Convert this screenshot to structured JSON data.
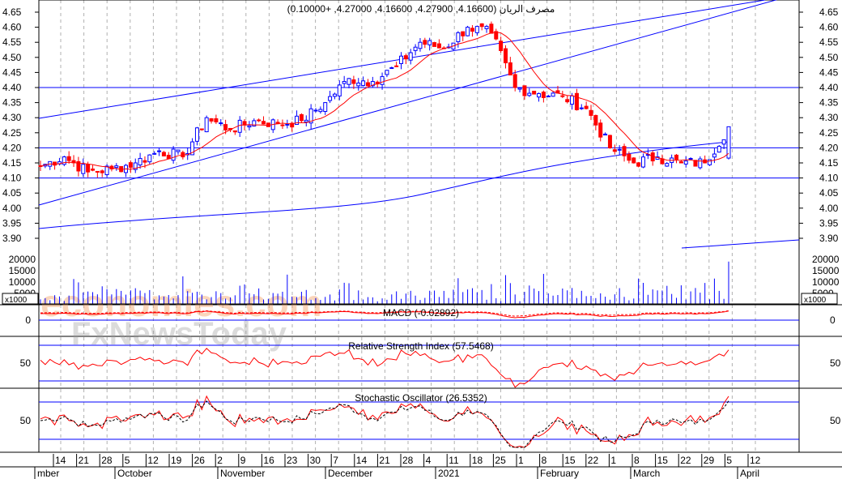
{
  "header": {
    "title": "مصرف الريان (4.16600, 4.27900, 4.16600, 4.27000, +0.10000)"
  },
  "watermarks": {
    "brand1": "economies.com",
    "brand2": "FxNewsToday"
  },
  "colors": {
    "up": "#0000ff",
    "down": "#ff0000",
    "ma": "#ff0000",
    "line": "#0000ff",
    "grid": "#b0b0b0"
  },
  "chart_data": [
    {
      "type": "candlestick",
      "name": "price",
      "yticks": [
        "4.65",
        "4.60",
        "4.55",
        "4.50",
        "4.45",
        "4.40",
        "4.35",
        "4.30",
        "4.25",
        "4.20",
        "4.15",
        "4.10",
        "4.05",
        "4.00",
        "3.95",
        "3.90"
      ],
      "ylim": [
        3.875,
        4.675
      ],
      "horizontal_levels": [
        4.4,
        4.2,
        4.1
      ],
      "weekly_closes": [
        4.14,
        4.17,
        4.12,
        4.13,
        4.15,
        4.19,
        4.17,
        4.3,
        4.26,
        4.29,
        4.28,
        4.29,
        4.35,
        4.43,
        4.42,
        4.47,
        4.55,
        4.53,
        4.6,
        4.58,
        4.4,
        4.38,
        4.37,
        4.33,
        4.2,
        4.15,
        4.17,
        4.15,
        4.15,
        4.27
      ],
      "last": {
        "open": 4.166,
        "high": 4.279,
        "low": 4.166,
        "close": 4.27,
        "change": 0.1
      }
    },
    {
      "type": "bar",
      "name": "volume",
      "yticks": [
        "20000",
        "15000",
        "10000",
        "5000"
      ],
      "unit_label": "x1000"
    },
    {
      "type": "line",
      "name": "macd",
      "label": "MACD (-0.02892)",
      "yticks": [
        "0"
      ]
    },
    {
      "type": "line",
      "name": "rsi",
      "label": "Relative Strength Index (57.5468)",
      "yticks": [
        "50"
      ]
    },
    {
      "type": "line",
      "name": "stochastic",
      "label": "Stochastic Oscillator (26.5352)",
      "yticks": [
        "50"
      ]
    }
  ],
  "xaxis": {
    "days": [
      "14",
      "21",
      "28",
      "5",
      "12",
      "19",
      "26",
      "2",
      "9",
      "16",
      "23",
      "30",
      "7",
      "14",
      "21",
      "28",
      "4",
      "11",
      "18",
      "25",
      "1",
      "8",
      "15",
      "22",
      "1",
      "8",
      "15",
      "22",
      "29",
      "5",
      "12"
    ],
    "months": [
      "mber",
      "October",
      "November",
      "December",
      "2021",
      "February",
      "March",
      "April"
    ]
  }
}
